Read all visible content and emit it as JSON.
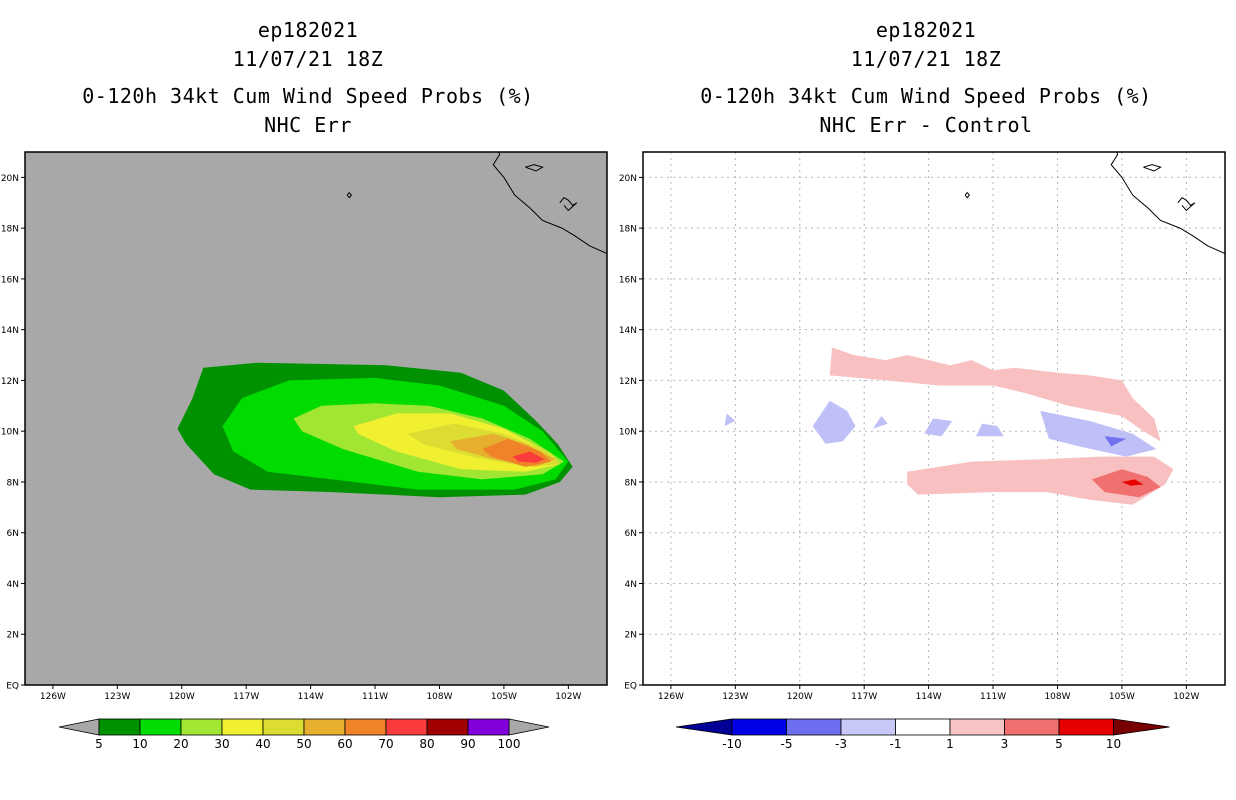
{
  "left_panel": {
    "title_lines": [
      "ep182021",
      "11/07/21 18Z",
      "0-120h 34kt Cum Wind Speed Probs (%)",
      "NHC Err"
    ]
  },
  "right_panel": {
    "title_lines": [
      "ep182021",
      "11/07/21 18Z",
      "0-120h 34kt Cum Wind Speed Probs (%)",
      "NHC Err - Control"
    ]
  },
  "colors": {
    "background_gray": "#a8a8a8",
    "coast": "#000000",
    "grid": "#b4b4b4"
  },
  "chart_data": [
    {
      "type": "heatmap",
      "title": "0-120h 34kt Cum Wind Speed Probs (%) — NHC Err",
      "storm_id": "ep182021",
      "init_time": "11/07/21 18Z",
      "x_ticks": [
        "126W",
        "123W",
        "120W",
        "117W",
        "114W",
        "111W",
        "108W",
        "105W",
        "102W"
      ],
      "y_ticks": [
        "EQ",
        "2N",
        "4N",
        "6N",
        "8N",
        "10N",
        "12N",
        "14N",
        "16N",
        "18N",
        "20N"
      ],
      "xlim_deg": [
        -127.3,
        -100.2
      ],
      "ylim_deg": [
        0,
        21
      ],
      "grid": false,
      "levels": [
        {
          "min": 5,
          "color": "#009100",
          "polygon": [
            [
              -120.2,
              10.1
            ],
            [
              -119.5,
              11.3
            ],
            [
              -119.0,
              12.5
            ],
            [
              -116.5,
              12.7
            ],
            [
              -110.5,
              12.6
            ],
            [
              -107,
              12.3
            ],
            [
              -105,
              11.6
            ],
            [
              -103.5,
              10.4
            ],
            [
              -102.5,
              9.5
            ],
            [
              -101.8,
              8.6
            ],
            [
              -102.4,
              8.0
            ],
            [
              -104.0,
              7.5
            ],
            [
              -108,
              7.4
            ],
            [
              -113,
              7.6
            ],
            [
              -116.8,
              7.7
            ],
            [
              -118.5,
              8.3
            ],
            [
              -119.8,
              9.5
            ]
          ]
        },
        {
          "min": 10,
          "color": "#00dc00",
          "polygon": [
            [
              -118.1,
              10.2
            ],
            [
              -117.2,
              11.3
            ],
            [
              -115,
              12.0
            ],
            [
              -111,
              12.1
            ],
            [
              -108,
              11.8
            ],
            [
              -105,
              11.0
            ],
            [
              -103.2,
              10.0
            ],
            [
              -102.0,
              8.8
            ],
            [
              -102.6,
              8.1
            ],
            [
              -104.5,
              7.7
            ],
            [
              -109,
              7.7
            ],
            [
              -113,
              8.1
            ],
            [
              -116,
              8.4
            ],
            [
              -117.6,
              9.2
            ]
          ]
        },
        {
          "min": 20,
          "color": "#a0e632",
          "polygon": [
            [
              -114.8,
              10.5
            ],
            [
              -113.5,
              11.0
            ],
            [
              -111,
              11.1
            ],
            [
              -108.5,
              11.0
            ],
            [
              -106,
              10.5
            ],
            [
              -103.8,
              9.7
            ],
            [
              -102.2,
              8.8
            ],
            [
              -103.2,
              8.3
            ],
            [
              -106,
              8.1
            ],
            [
              -109,
              8.4
            ],
            [
              -112.5,
              9.3
            ],
            [
              -114.4,
              10.0
            ]
          ]
        },
        {
          "min": 30,
          "color": "#f0f030",
          "polygon": [
            [
              -112.0,
              10.2
            ],
            [
              -110.0,
              10.7
            ],
            [
              -107.5,
              10.7
            ],
            [
              -105.0,
              10.1
            ],
            [
              -102.8,
              9.1
            ],
            [
              -102.4,
              8.7
            ],
            [
              -104,
              8.4
            ],
            [
              -107,
              8.5
            ],
            [
              -110,
              9.2
            ],
            [
              -111.8,
              9.9
            ]
          ]
        },
        {
          "min": 40,
          "color": "#dcdc32",
          "polygon": [
            [
              -109.5,
              9.9
            ],
            [
              -107.3,
              10.3
            ],
            [
              -105,
              9.9
            ],
            [
              -103,
              9.2
            ],
            [
              -102.4,
              8.7
            ],
            [
              -104,
              8.6
            ],
            [
              -106.5,
              9.0
            ],
            [
              -108.8,
              9.5
            ]
          ]
        },
        {
          "min": 50,
          "color": "#e6af2d",
          "polygon": [
            [
              -107.5,
              9.6
            ],
            [
              -105.5,
              9.9
            ],
            [
              -104,
              9.5
            ],
            [
              -102.6,
              8.9
            ],
            [
              -103.5,
              8.6
            ],
            [
              -105.5,
              8.9
            ],
            [
              -107.2,
              9.3
            ]
          ]
        },
        {
          "min": 60,
          "color": "#f08228",
          "polygon": [
            [
              -106.0,
              9.3
            ],
            [
              -104.8,
              9.7
            ],
            [
              -103.3,
              9.2
            ],
            [
              -102.8,
              8.8
            ],
            [
              -104,
              8.6
            ],
            [
              -105.6,
              9.0
            ]
          ]
        },
        {
          "min": 70,
          "color": "#fa3c3c",
          "polygon": [
            [
              -104.6,
              9.0
            ],
            [
              -103.8,
              9.2
            ],
            [
              -103.1,
              8.9
            ],
            [
              -103.5,
              8.75
            ],
            [
              -104.3,
              8.8
            ]
          ]
        }
      ],
      "colorbar": {
        "labels": [
          "5",
          "10",
          "20",
          "30",
          "40",
          "50",
          "60",
          "70",
          "80",
          "90",
          "100"
        ],
        "colors": [
          "#009100",
          "#00dc00",
          "#a0e632",
          "#f0f030",
          "#dcdc32",
          "#e6af2d",
          "#f08228",
          "#fa3c3c",
          "#a00000",
          "#8200dc"
        ],
        "end_color": "#a8a8a8"
      }
    },
    {
      "type": "heatmap",
      "title": "0-120h 34kt Cum Wind Speed Probs (%) — NHC Err - Control",
      "storm_id": "ep182021",
      "init_time": "11/07/21 18Z",
      "x_ticks": [
        "126W",
        "123W",
        "120W",
        "117W",
        "114W",
        "111W",
        "108W",
        "105W",
        "102W"
      ],
      "y_ticks": [
        "EQ",
        "2N",
        "4N",
        "6N",
        "8N",
        "10N",
        "12N",
        "14N",
        "16N",
        "18N",
        "20N"
      ],
      "xlim_deg": [
        -127.3,
        -100.2
      ],
      "ylim_deg": [
        0,
        21
      ],
      "grid": true,
      "regions": [
        {
          "value": 1,
          "color": "#f8c0c0",
          "polygon": [
            [
              -118.5,
              13.3
            ],
            [
              -117.5,
              13.0
            ],
            [
              -116.0,
              12.8
            ],
            [
              -115.0,
              13.0
            ],
            [
              -113.0,
              12.6
            ],
            [
              -112.0,
              12.8
            ],
            [
              -111.0,
              12.4
            ],
            [
              -110.0,
              12.5
            ],
            [
              -108.0,
              12.3
            ],
            [
              -106.5,
              12.2
            ],
            [
              -105.0,
              12.0
            ],
            [
              -104.5,
              11.3
            ],
            [
              -103.5,
              10.5
            ],
            [
              -103.2,
              9.6
            ],
            [
              -104.0,
              10.0
            ],
            [
              -105.0,
              10.6
            ],
            [
              -107.5,
              11.0
            ],
            [
              -109.5,
              11.5
            ],
            [
              -111,
              11.8
            ],
            [
              -113.5,
              11.8
            ],
            [
              -116,
              12.0
            ],
            [
              -118.6,
              12.2
            ]
          ]
        },
        {
          "value": 1,
          "color": "#f8c0c0",
          "polygon": [
            [
              -115.0,
              8.4
            ],
            [
              -112.0,
              8.8
            ],
            [
              -108.5,
              8.9
            ],
            [
              -106.0,
              9.0
            ],
            [
              -103.5,
              9.0
            ],
            [
              -102.6,
              8.5
            ],
            [
              -103.0,
              7.9
            ],
            [
              -104.5,
              7.1
            ],
            [
              -106.5,
              7.3
            ],
            [
              -108.5,
              7.6
            ],
            [
              -111,
              7.6
            ],
            [
              -114.5,
              7.5
            ],
            [
              -115.0,
              7.9
            ]
          ]
        },
        {
          "value": -1,
          "color": "#c0c0f8",
          "polygon": [
            [
              -119.4,
              10.2
            ],
            [
              -118.6,
              11.2
            ],
            [
              -117.8,
              10.8
            ],
            [
              -117.4,
              10.2
            ],
            [
              -118.0,
              9.6
            ],
            [
              -118.8,
              9.5
            ]
          ]
        },
        {
          "value": -1,
          "color": "#c0c0f8",
          "polygon": [
            [
              -123.4,
              10.7
            ],
            [
              -123.0,
              10.4
            ],
            [
              -123.5,
              10.2
            ]
          ]
        },
        {
          "value": -1,
          "color": "#c0c0f8",
          "polygon": [
            [
              -116.2,
              10.6
            ],
            [
              -115.9,
              10.3
            ],
            [
              -116.6,
              10.1
            ]
          ]
        },
        {
          "value": -1,
          "color": "#c0c0f8",
          "polygon": [
            [
              -113.8,
              10.5
            ],
            [
              -112.9,
              10.4
            ],
            [
              -113.4,
              9.8
            ],
            [
              -114.2,
              9.9
            ]
          ]
        },
        {
          "value": -1,
          "color": "#c0c0f8",
          "polygon": [
            [
              -111.5,
              10.3
            ],
            [
              -110.8,
              10.2
            ],
            [
              -110.5,
              9.8
            ],
            [
              -111.8,
              9.8
            ]
          ]
        },
        {
          "value": -1,
          "color": "#c0c0f8",
          "polygon": [
            [
              -108.8,
              10.8
            ],
            [
              -106.5,
              10.4
            ],
            [
              -104.5,
              9.9
            ],
            [
              -103.4,
              9.3
            ],
            [
              -104.8,
              9.0
            ],
            [
              -107.0,
              9.4
            ],
            [
              -108.4,
              9.7
            ]
          ]
        },
        {
          "value": -3,
          "color": "#7070f0",
          "polygon": [
            [
              -105.8,
              9.8
            ],
            [
              -104.8,
              9.7
            ],
            [
              -105.5,
              9.4
            ]
          ]
        },
        {
          "value": 3,
          "color": "#f07070",
          "polygon": [
            [
              -106.4,
              8.1
            ],
            [
              -105.0,
              8.5
            ],
            [
              -103.8,
              8.2
            ],
            [
              -103.2,
              7.8
            ],
            [
              -104.2,
              7.4
            ],
            [
              -105.8,
              7.6
            ]
          ]
        },
        {
          "value": 5,
          "color": "#e80000",
          "polygon": [
            [
              -105.0,
              8.0
            ],
            [
              -104.4,
              8.1
            ],
            [
              -104.0,
              7.9
            ],
            [
              -104.6,
              7.85
            ]
          ]
        }
      ],
      "colorbar": {
        "labels": [
          "-10",
          "-5",
          "-3",
          "-1",
          "1",
          "3",
          "5",
          "10"
        ],
        "colors": [
          "#0000e6",
          "#6e6ef0",
          "#c8c8f8",
          "#ffffff",
          "#f8c4c4",
          "#f07070",
          "#e60000"
        ],
        "low_end_color": "#000096",
        "high_end_color": "#780000"
      }
    }
  ]
}
